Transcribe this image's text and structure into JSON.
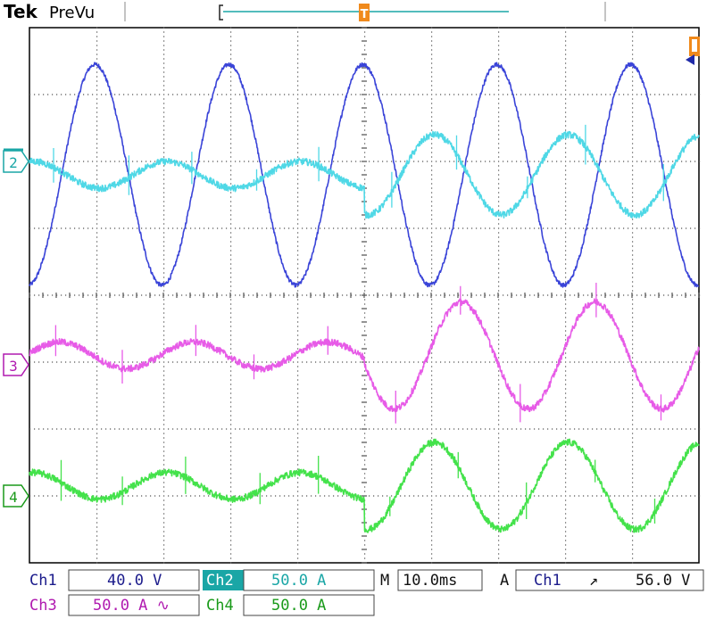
{
  "header": {
    "brand": "Tek",
    "mode": "PreVu",
    "trigger_marker": "T"
  },
  "channel_markers": [
    {
      "label": "2",
      "color": "#1aa6a6"
    },
    {
      "label": "3",
      "color": "#b01ab0"
    },
    {
      "label": "4",
      "color": "#1a9a1a"
    }
  ],
  "colors": {
    "ch1": "#3a44d8",
    "ch2": "#4fd8e6",
    "ch3": "#e75be7",
    "ch4": "#44e24b",
    "grid_bg": "#ffffff",
    "grid_dots": "#555555",
    "panel_text": "#1c1c8c"
  },
  "status": {
    "ch1": {
      "label": "Ch1",
      "value": "40.0 V"
    },
    "ch2": {
      "label": "Ch2",
      "value": "50.0 A"
    },
    "ch3": {
      "label": "Ch3",
      "value": "50.0 A ∿"
    },
    "ch4": {
      "label": "Ch4",
      "value": "50.0 A"
    },
    "timebase": {
      "label": "M",
      "value": "10.0ms"
    },
    "trigger": {
      "label": "A",
      "source": "Ch1",
      "slope": "↗",
      "level": "56.0 V"
    }
  },
  "chart_data": {
    "type": "line",
    "grid": true,
    "divisions": {
      "x": 10,
      "y": 8
    },
    "xlim": [
      0,
      100
    ],
    "x_unit": "ms",
    "series": [
      {
        "name": "Ch1",
        "scale": "40.0 V/div",
        "offset_div": 1.8,
        "shape": "sine",
        "period_ms": 20,
        "phase_ms": 4.8,
        "amplitude_div": 1.65,
        "noise": 0.03,
        "spikes": false
      },
      {
        "name": "Ch2",
        "scale": "50.0 A/div",
        "offset_div": 1.8,
        "shape": "sine",
        "period_ms": 20,
        "phase_ms": -4.5,
        "amplitude_segments": [
          {
            "until_ms": 50,
            "amplitude_div": 0.2
          },
          {
            "until_ms": 100,
            "amplitude_div": 0.6
          }
        ],
        "noise": 0.05,
        "spikes": true
      },
      {
        "name": "Ch3",
        "scale": "50.0 A/div",
        "offset_div": -0.9,
        "shape": "sine",
        "period_ms": 20,
        "phase_ms": -0.5,
        "amplitude_segments": [
          {
            "until_ms": 50,
            "amplitude_div": 0.2
          },
          {
            "until_ms": 100,
            "amplitude_div": 0.8
          }
        ],
        "noise": 0.05,
        "spikes": true
      },
      {
        "name": "Ch4",
        "scale": "50.0 A/div",
        "offset_div": -2.85,
        "shape": "sine",
        "period_ms": 20,
        "phase_ms": -4.5,
        "amplitude_segments": [
          {
            "until_ms": 50,
            "amplitude_div": 0.2
          },
          {
            "until_ms": 100,
            "amplitude_div": 0.65
          }
        ],
        "noise": 0.05,
        "spikes": true
      }
    ]
  }
}
